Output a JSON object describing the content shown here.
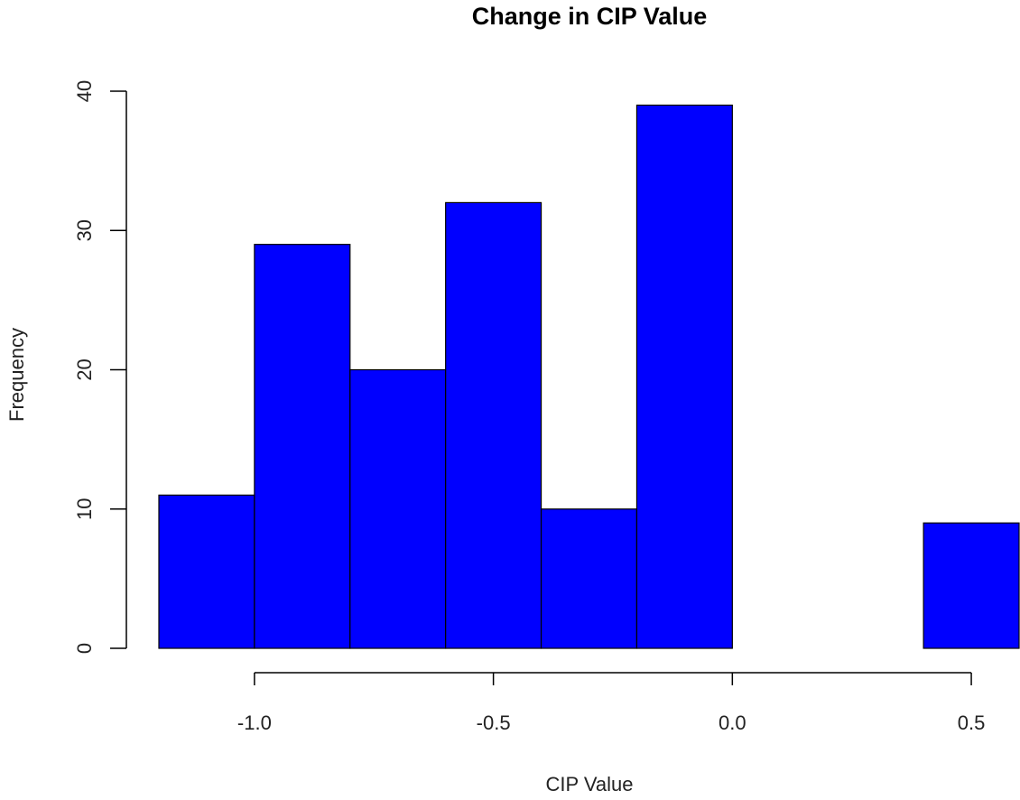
{
  "chart_data": {
    "type": "histogram",
    "title": "Change in CIP Value",
    "x_label": "CIP Value",
    "y_label": "Frequency",
    "bins": [
      -1.2,
      -1.0,
      -0.8,
      -0.6,
      -0.4,
      -0.2,
      0.0,
      0.2,
      0.4,
      0.6
    ],
    "values": [
      11,
      29,
      20,
      32,
      10,
      39,
      0,
      0,
      9
    ],
    "color": "#0000ff",
    "xlim": [
      -1.2,
      0.6
    ],
    "xticks": [
      {
        "value": -1.0,
        "label": "-1.0"
      },
      {
        "value": -0.5,
        "label": "-0.5"
      },
      {
        "value": 0,
        "label": "0.0"
      },
      0.5
    ],
    "ylim": [
      0,
      40
    ],
    "yticks": [
      0,
      10,
      20,
      30,
      40
    ],
    "grid": false
  }
}
